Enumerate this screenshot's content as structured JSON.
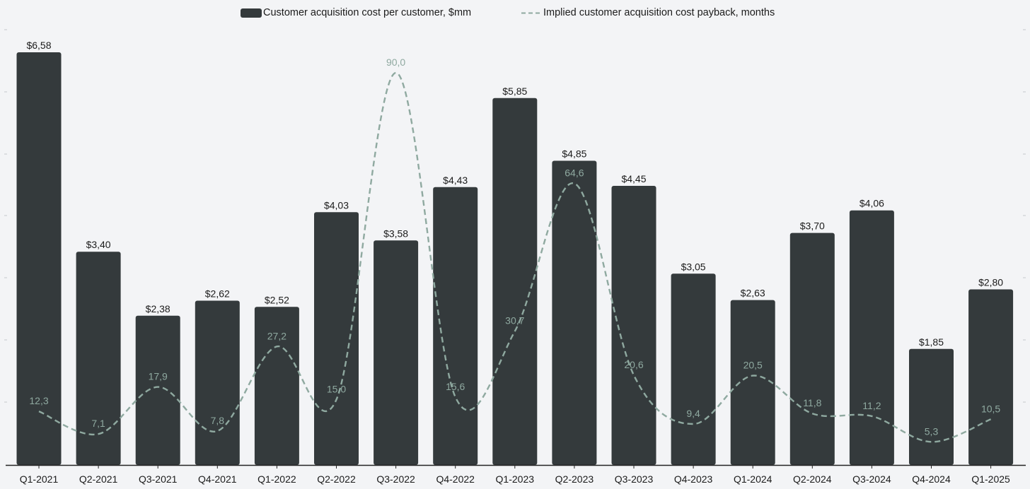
{
  "chart_data": {
    "type": "bar",
    "title": "",
    "xlabel": "",
    "ylabel": "",
    "categories": [
      "Q1-2021",
      "Q2-2021",
      "Q3-2021",
      "Q4-2021",
      "Q1-2022",
      "Q2-2022",
      "Q3-2022",
      "Q4-2022",
      "Q1-2023",
      "Q2-2023",
      "Q3-2023",
      "Q4-2023",
      "Q1-2024",
      "Q2-2024",
      "Q3-2024",
      "Q4-2024",
      "Q1-2025"
    ],
    "legend_position": "top-center",
    "series": [
      {
        "name": "Customer acquisition cost per customer, $mm",
        "type": "bar",
        "axis": "left",
        "values": [
          6.58,
          3.4,
          2.38,
          2.62,
          2.52,
          4.03,
          3.58,
          4.43,
          5.85,
          4.85,
          4.45,
          3.05,
          2.63,
          3.7,
          4.06,
          1.85,
          2.8
        ],
        "labels": [
          "$6,58",
          "$3,40",
          "$2,38",
          "$2,62",
          "$2,52",
          "$4,03",
          "$3,58",
          "$4,43",
          "$5,85",
          "$4,85",
          "$4,45",
          "$3,05",
          "$2,63",
          "$3,70",
          "$4,06",
          "$1,85",
          "$2,80"
        ],
        "color": "#343a3c"
      },
      {
        "name": "Implied customer acquisition cost payback, months",
        "type": "line",
        "style": "dashed-smooth",
        "axis": "right",
        "values": [
          12.3,
          7.1,
          17.9,
          7.8,
          27.2,
          15.0,
          90.0,
          15.6,
          30.7,
          64.6,
          20.6,
          9.4,
          20.5,
          11.8,
          11.2,
          5.3,
          10.5
        ],
        "labels": [
          "12,3",
          "7,1",
          "17,9",
          "7,8",
          "27,2",
          "15,0",
          "90,0",
          "15,6",
          "30,7",
          "64,6",
          "20,6",
          "9,4",
          "20,5",
          "11,8",
          "11,2",
          "5,3",
          "10,5"
        ],
        "color": "#8fa9a0"
      }
    ],
    "ylim_left": [
      0,
      6.58
    ],
    "ylim_right": [
      0,
      90
    ],
    "grid": false
  },
  "colors": {
    "background": "#f3f4f6",
    "bar": "#343a3c",
    "line": "#8fa9a0",
    "axis": "#222222",
    "tick": "#c4c8cc"
  }
}
